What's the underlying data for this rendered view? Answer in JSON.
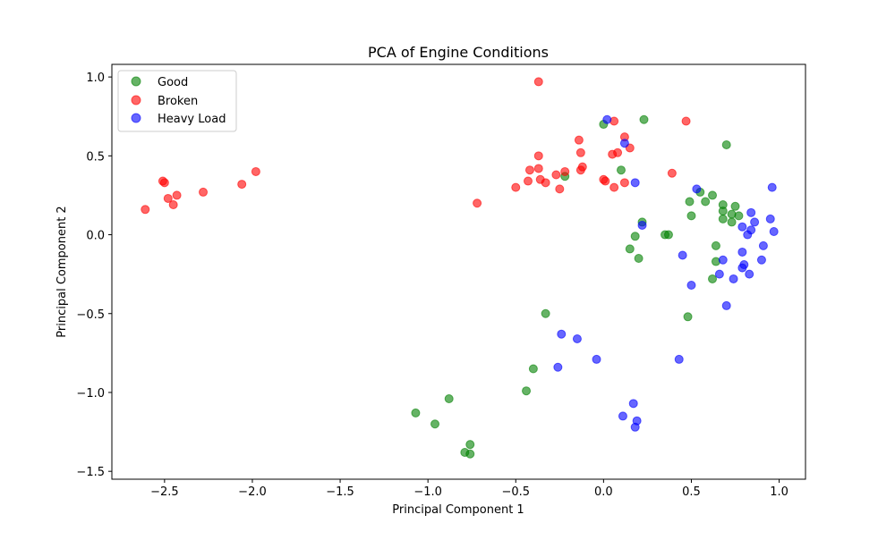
{
  "chart_data": {
    "type": "scatter",
    "title": "PCA of Engine Conditions",
    "xlabel": "Principal Component 1",
    "ylabel": "Principal Component 2",
    "xlim": [
      -2.8,
      1.15
    ],
    "ylim": [
      -1.55,
      1.08
    ],
    "xticks": [
      -2.5,
      -2.0,
      -1.5,
      -1.0,
      -0.5,
      0.0,
      0.5,
      1.0
    ],
    "xtick_labels": [
      "−2.5",
      "−2.0",
      "−1.5",
      "−1.0",
      "−0.5",
      "0.0",
      "0.5",
      "1.0"
    ],
    "yticks": [
      -1.5,
      -1.0,
      -0.5,
      0.0,
      0.5,
      1.0
    ],
    "ytick_labels": [
      "−1.5",
      "−1.0",
      "−0.5",
      "0.0",
      "0.5",
      "1.0"
    ],
    "grid": false,
    "legend_position": "top-left",
    "series": [
      {
        "name": "Good",
        "color": "#008000",
        "points": [
          [
            0.0,
            0.7
          ],
          [
            0.23,
            0.73
          ],
          [
            0.7,
            0.57
          ],
          [
            0.1,
            0.41
          ],
          [
            -0.22,
            0.37
          ],
          [
            0.55,
            0.27
          ],
          [
            0.49,
            0.21
          ],
          [
            0.58,
            0.21
          ],
          [
            0.62,
            0.25
          ],
          [
            0.68,
            0.19
          ],
          [
            0.75,
            0.18
          ],
          [
            0.68,
            0.15
          ],
          [
            0.73,
            0.13
          ],
          [
            0.77,
            0.12
          ],
          [
            0.5,
            0.12
          ],
          [
            0.68,
            0.1
          ],
          [
            0.73,
            0.08
          ],
          [
            0.22,
            0.08
          ],
          [
            0.35,
            0.0
          ],
          [
            0.37,
            0.0
          ],
          [
            0.18,
            -0.01
          ],
          [
            0.64,
            -0.07
          ],
          [
            0.15,
            -0.09
          ],
          [
            0.2,
            -0.15
          ],
          [
            0.64,
            -0.17
          ],
          [
            0.62,
            -0.28
          ],
          [
            0.48,
            -0.52
          ],
          [
            -0.33,
            -0.5
          ],
          [
            -0.4,
            -0.85
          ],
          [
            -0.44,
            -0.99
          ],
          [
            -0.88,
            -1.04
          ],
          [
            -1.07,
            -1.13
          ],
          [
            -0.96,
            -1.2
          ],
          [
            -0.76,
            -1.33
          ],
          [
            -0.79,
            -1.38
          ],
          [
            -0.76,
            -1.39
          ]
        ]
      },
      {
        "name": "Broken",
        "color": "#ff0000",
        "points": [
          [
            -0.37,
            0.97
          ],
          [
            0.06,
            0.72
          ],
          [
            0.47,
            0.72
          ],
          [
            0.12,
            0.62
          ],
          [
            -0.14,
            0.6
          ],
          [
            0.15,
            0.55
          ],
          [
            -0.37,
            0.5
          ],
          [
            -0.13,
            0.52
          ],
          [
            0.08,
            0.52
          ],
          [
            0.05,
            0.51
          ],
          [
            -0.12,
            0.43
          ],
          [
            -0.13,
            0.41
          ],
          [
            -0.37,
            0.42
          ],
          [
            -0.42,
            0.41
          ],
          [
            -0.22,
            0.4
          ],
          [
            -0.27,
            0.38
          ],
          [
            0.39,
            0.39
          ],
          [
            -0.36,
            0.35
          ],
          [
            0.0,
            0.35
          ],
          [
            0.01,
            0.34
          ],
          [
            -0.43,
            0.34
          ],
          [
            -0.33,
            0.33
          ],
          [
            0.12,
            0.33
          ],
          [
            0.06,
            0.3
          ],
          [
            -0.5,
            0.3
          ],
          [
            -0.25,
            0.29
          ],
          [
            -0.72,
            0.2
          ],
          [
            -2.51,
            0.34
          ],
          [
            -2.5,
            0.33
          ],
          [
            -1.98,
            0.4
          ],
          [
            -2.06,
            0.32
          ],
          [
            -2.28,
            0.27
          ],
          [
            -2.43,
            0.25
          ],
          [
            -2.48,
            0.23
          ],
          [
            -2.45,
            0.19
          ],
          [
            -2.61,
            0.16
          ]
        ]
      },
      {
        "name": "Heavy Load",
        "color": "#0000ff",
        "points": [
          [
            0.02,
            0.73
          ],
          [
            0.12,
            0.58
          ],
          [
            0.18,
            0.33
          ],
          [
            0.53,
            0.29
          ],
          [
            0.96,
            0.3
          ],
          [
            0.84,
            0.14
          ],
          [
            0.95,
            0.1
          ],
          [
            0.86,
            0.08
          ],
          [
            0.22,
            0.06
          ],
          [
            0.79,
            0.05
          ],
          [
            0.84,
            0.03
          ],
          [
            0.82,
            0.0
          ],
          [
            0.97,
            0.02
          ],
          [
            0.91,
            -0.07
          ],
          [
            0.79,
            -0.11
          ],
          [
            0.45,
            -0.13
          ],
          [
            0.68,
            -0.16
          ],
          [
            0.9,
            -0.16
          ],
          [
            0.8,
            -0.19
          ],
          [
            0.79,
            -0.21
          ],
          [
            0.83,
            -0.25
          ],
          [
            0.66,
            -0.25
          ],
          [
            0.74,
            -0.28
          ],
          [
            0.5,
            -0.32
          ],
          [
            0.7,
            -0.45
          ],
          [
            -0.24,
            -0.63
          ],
          [
            -0.15,
            -0.66
          ],
          [
            -0.04,
            -0.79
          ],
          [
            0.43,
            -0.79
          ],
          [
            -0.26,
            -0.84
          ],
          [
            0.17,
            -1.07
          ],
          [
            0.11,
            -1.15
          ],
          [
            0.19,
            -1.18
          ],
          [
            0.18,
            -1.22
          ]
        ]
      }
    ]
  }
}
